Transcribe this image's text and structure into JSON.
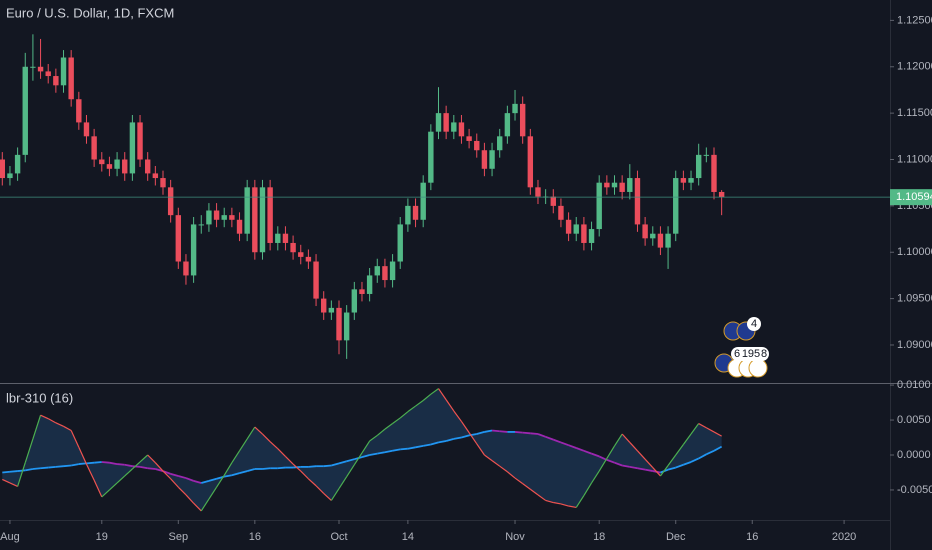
{
  "chart_data": [
    {
      "type": "candlestick",
      "title": "Euro / U.S. Dollar, 1D, FXCM",
      "up_color": "#53b987",
      "down_color": "#eb4d5c",
      "open": [
        1.11,
        1.108,
        1.1085,
        1.1105,
        1.12,
        1.12,
        1.1195,
        1.119,
        1.118,
        1.121,
        1.1165,
        1.114,
        1.1125,
        1.11,
        1.1095,
        1.109,
        1.11,
        1.1085,
        1.114,
        1.11,
        1.1085,
        1.108,
        1.107,
        1.104,
        1.099,
        1.0975,
        1.103,
        1.103,
        1.1045,
        1.1035,
        1.104,
        1.1035,
        1.102,
        1.107,
        1.1,
        1.107,
        1.101,
        1.102,
        1.101,
        1.1,
        1.0995,
        1.099,
        1.095,
        1.0935,
        1.094,
        1.0905,
        1.0935,
        1.096,
        1.0955,
        1.0975,
        1.0985,
        1.097,
        1.099,
        1.103,
        1.105,
        1.1035,
        1.1075,
        1.113,
        1.115,
        1.113,
        1.114,
        1.1125,
        1.112,
        1.111,
        1.109,
        1.111,
        1.1125,
        1.115,
        1.116,
        1.1125,
        1.107,
        1.106,
        1.106,
        1.105,
        1.1035,
        1.102,
        1.103,
        1.101,
        1.1025,
        1.1075,
        1.107,
        1.1075,
        1.1065,
        1.108,
        1.103,
        1.1015,
        1.102,
        1.1005,
        1.102,
        1.108,
        1.1075,
        1.108,
        1.1105,
        1.1105,
        1.1065
      ],
      "high": [
        1.1108,
        1.1093,
        1.1113,
        1.1215,
        1.1235,
        1.123,
        1.1203,
        1.1198,
        1.1218,
        1.1218,
        1.1173,
        1.1148,
        1.1133,
        1.1108,
        1.1103,
        1.1108,
        1.1108,
        1.1148,
        1.1148,
        1.1108,
        1.1093,
        1.1088,
        1.1078,
        1.1048,
        1.0998,
        1.1038,
        1.104,
        1.1053,
        1.1053,
        1.1048,
        1.1048,
        1.1043,
        1.1078,
        1.1078,
        1.1078,
        1.1078,
        1.1028,
        1.1028,
        1.1018,
        1.1008,
        1.1003,
        1.0998,
        1.0958,
        1.0948,
        1.0948,
        1.0943,
        1.0968,
        1.0968,
        1.0983,
        1.0993,
        1.0993,
        1.0998,
        1.1038,
        1.1058,
        1.1058,
        1.1083,
        1.1138,
        1.1178,
        1.1158,
        1.1148,
        1.1148,
        1.1133,
        1.1128,
        1.1118,
        1.1118,
        1.1133,
        1.1158,
        1.1175,
        1.1168,
        1.1133,
        1.1078,
        1.1068,
        1.1068,
        1.1058,
        1.1043,
        1.1038,
        1.1038,
        1.1033,
        1.1083,
        1.1083,
        1.1083,
        1.1083,
        1.1095,
        1.1088,
        1.1038,
        1.1028,
        1.1028,
        1.1028,
        1.1088,
        1.1088,
        1.1088,
        1.1117,
        1.1113,
        1.1113,
        1.1067
      ],
      "low": [
        1.1072,
        1.1072,
        1.1077,
        1.1097,
        1.1185,
        1.1187,
        1.1182,
        1.1172,
        1.1172,
        1.1157,
        1.1132,
        1.1117,
        1.1092,
        1.1087,
        1.1082,
        1.1082,
        1.1077,
        1.1077,
        1.1092,
        1.1077,
        1.1072,
        1.1062,
        1.1032,
        1.0982,
        1.0965,
        1.0967,
        1.102,
        1.1022,
        1.1027,
        1.1027,
        1.1027,
        1.1012,
        1.1012,
        1.0992,
        1.0992,
        1.1002,
        1.1002,
        1.1002,
        1.0992,
        1.0987,
        1.0982,
        1.0942,
        1.0927,
        1.0927,
        1.089,
        1.0885,
        1.0927,
        1.0947,
        1.0947,
        1.0967,
        1.0962,
        1.0962,
        1.0982,
        1.1022,
        1.1027,
        1.1027,
        1.1067,
        1.1122,
        1.1122,
        1.1122,
        1.1117,
        1.1112,
        1.1102,
        1.1082,
        1.1082,
        1.1102,
        1.1117,
        1.1142,
        1.1117,
        1.1062,
        1.1052,
        1.1052,
        1.1042,
        1.1027,
        1.1012,
        1.1012,
        1.1002,
        1.1002,
        1.1017,
        1.1062,
        1.1062,
        1.1057,
        1.1057,
        1.1022,
        1.1007,
        1.1007,
        1.0997,
        1.0982,
        1.1012,
        1.1067,
        1.1067,
        1.1072,
        1.1097,
        1.1057,
        1.104
      ],
      "close": [
        1.108,
        1.1085,
        1.1105,
        1.12,
        1.12,
        1.1195,
        1.119,
        1.118,
        1.121,
        1.1165,
        1.114,
        1.1125,
        1.11,
        1.1095,
        1.109,
        1.11,
        1.1085,
        1.114,
        1.11,
        1.1085,
        1.108,
        1.107,
        1.104,
        1.099,
        1.0975,
        1.103,
        1.103,
        1.1045,
        1.1035,
        1.104,
        1.1035,
        1.102,
        1.107,
        1.1,
        1.107,
        1.101,
        1.102,
        1.101,
        1.1,
        1.0995,
        1.099,
        1.095,
        1.0935,
        1.094,
        1.0905,
        1.0935,
        1.096,
        1.0955,
        1.0975,
        1.0985,
        1.097,
        1.099,
        1.103,
        1.105,
        1.1035,
        1.1075,
        1.113,
        1.115,
        1.113,
        1.114,
        1.1125,
        1.112,
        1.111,
        1.109,
        1.111,
        1.1125,
        1.115,
        1.116,
        1.1125,
        1.107,
        1.106,
        1.106,
        1.105,
        1.1035,
        1.102,
        1.103,
        1.101,
        1.1025,
        1.1075,
        1.107,
        1.1075,
        1.1065,
        1.108,
        1.103,
        1.1015,
        1.102,
        1.1005,
        1.102,
        1.108,
        1.1075,
        1.108,
        1.1105,
        1.1105,
        1.1065,
        1.10594
      ],
      "last_price_label": "1.10594",
      "xlim": [
        -0.3,
        116
      ],
      "xticks": [
        {
          "value": 1,
          "label": "Aug"
        },
        {
          "value": 13,
          "label": "19"
        },
        {
          "value": 23,
          "label": "Sep"
        },
        {
          "value": 33,
          "label": "16"
        },
        {
          "value": 44,
          "label": "Oct"
        },
        {
          "value": 53,
          "label": "14"
        },
        {
          "value": 67,
          "label": "Nov"
        },
        {
          "value": 78,
          "label": "18"
        },
        {
          "value": 88,
          "label": "Dec"
        },
        {
          "value": 98,
          "label": "16"
        },
        {
          "value": 110,
          "label": "2020"
        }
      ],
      "ylim": [
        1.0859,
        1.1272
      ],
      "yticks": [
        {
          "value": 1.125,
          "label": "1.12500"
        },
        {
          "value": 1.12,
          "label": "1.12000"
        },
        {
          "value": 1.115,
          "label": "1.11500"
        },
        {
          "value": 1.11,
          "label": "1.11000"
        },
        {
          "value": 1.105,
          "label": "1.10500"
        },
        {
          "value": 1.1,
          "label": "1.10000"
        },
        {
          "value": 1.095,
          "label": "1.09500"
        },
        {
          "value": 1.09,
          "label": "1.09000"
        }
      ],
      "event_badges": [
        "4",
        "6",
        "195",
        "8"
      ]
    },
    {
      "type": "line",
      "title": "lbr-310 (16)",
      "series": [
        {
          "color_up": "#4caf50",
          "color_down": "#ef5350",
          "values": [
            -0.0035,
            -0.004,
            -0.0045,
            -0.0011,
            0.0023,
            0.0057,
            0.0052,
            0.0046,
            0.0041,
            0.0035,
            0.0011,
            -0.0013,
            -0.0036,
            -0.006,
            -0.005,
            -0.004,
            -0.003,
            -0.002,
            -0.001,
            0.0,
            -0.0011,
            -0.0023,
            -0.0034,
            -0.0046,
            -0.0057,
            -0.0069,
            -0.008,
            -0.0063,
            -0.0046,
            -0.0029,
            -0.0011,
            0.0006,
            0.0023,
            0.004,
            0.003,
            0.0019,
            0.0009,
            -0.0002,
            -0.0013,
            -0.0023,
            -0.0034,
            -0.0044,
            -0.0055,
            -0.0065,
            -0.0048,
            -0.0031,
            -0.0014,
            0.0003,
            0.002,
            0.0028,
            0.0037,
            0.0045,
            0.0053,
            0.0062,
            0.007,
            0.0078,
            0.0087,
            0.0095,
            0.0079,
            0.0063,
            0.0048,
            0.0032,
            0.0016,
            0.0,
            -0.0008,
            -0.0016,
            -0.0024,
            -0.0033,
            -0.0041,
            -0.0049,
            -0.0057,
            -0.0065,
            -0.0068,
            -0.007,
            -0.0073,
            -0.0075,
            -0.0058,
            -0.004,
            -0.0023,
            -0.0005,
            0.0013,
            0.003,
            0.0018,
            0.0006,
            -0.0006,
            -0.0018,
            -0.003,
            -0.0015,
            0.0,
            0.0015,
            0.003,
            0.0045,
            0.0039,
            0.0033,
            0.0027
          ]
        },
        {
          "color_up": "#2196f3",
          "color_down": "#9c27b0",
          "values": [
            -0.0025,
            -0.0024,
            -0.0023,
            -0.0022,
            -0.002,
            -0.0019,
            -0.0018,
            -0.0017,
            -0.0016,
            -0.0015,
            -0.0013,
            -0.0012,
            -0.0011,
            -0.001,
            -0.0011,
            -0.0013,
            -0.0014,
            -0.0016,
            -0.0017,
            -0.0019,
            -0.002,
            -0.0023,
            -0.0027,
            -0.003,
            -0.0033,
            -0.0037,
            -0.004,
            -0.0037,
            -0.0034,
            -0.0031,
            -0.0029,
            -0.0026,
            -0.0023,
            -0.002,
            -0.002,
            -0.0019,
            -0.0019,
            -0.0018,
            -0.0018,
            -0.0017,
            -0.0017,
            -0.0016,
            -0.0016,
            -0.0015,
            -0.0012,
            -0.0009,
            -0.0006,
            -0.0003,
            0.0,
            0.0002,
            0.0004,
            0.0006,
            0.0008,
            0.0009,
            0.0011,
            0.0013,
            0.0015,
            0.0018,
            0.002,
            0.0023,
            0.0025,
            0.0028,
            0.003,
            0.0033,
            0.0035,
            0.0034,
            0.0033,
            0.0033,
            0.0032,
            0.0031,
            0.003,
            0.0026,
            0.0022,
            0.0018,
            0.0014,
            0.001,
            0.0006,
            0.0002,
            -0.0002,
            -0.0007,
            -0.0011,
            -0.0015,
            -0.0017,
            -0.0019,
            -0.0021,
            -0.0023,
            -0.0025,
            -0.0021,
            -0.0018,
            -0.0014,
            -0.001,
            -0.0005,
            0.0001,
            0.0006,
            0.0012
          ]
        }
      ],
      "fill_color": "#1c3350",
      "ylim": [
        -0.0093,
        0.0103
      ],
      "yticks": [
        {
          "value": 0.01,
          "label": "0.0100"
        },
        {
          "value": 0.005,
          "label": "0.0050"
        },
        {
          "value": 0,
          "label": "0.0000"
        },
        {
          "value": -0.005,
          "label": "-0.0050"
        }
      ]
    }
  ]
}
